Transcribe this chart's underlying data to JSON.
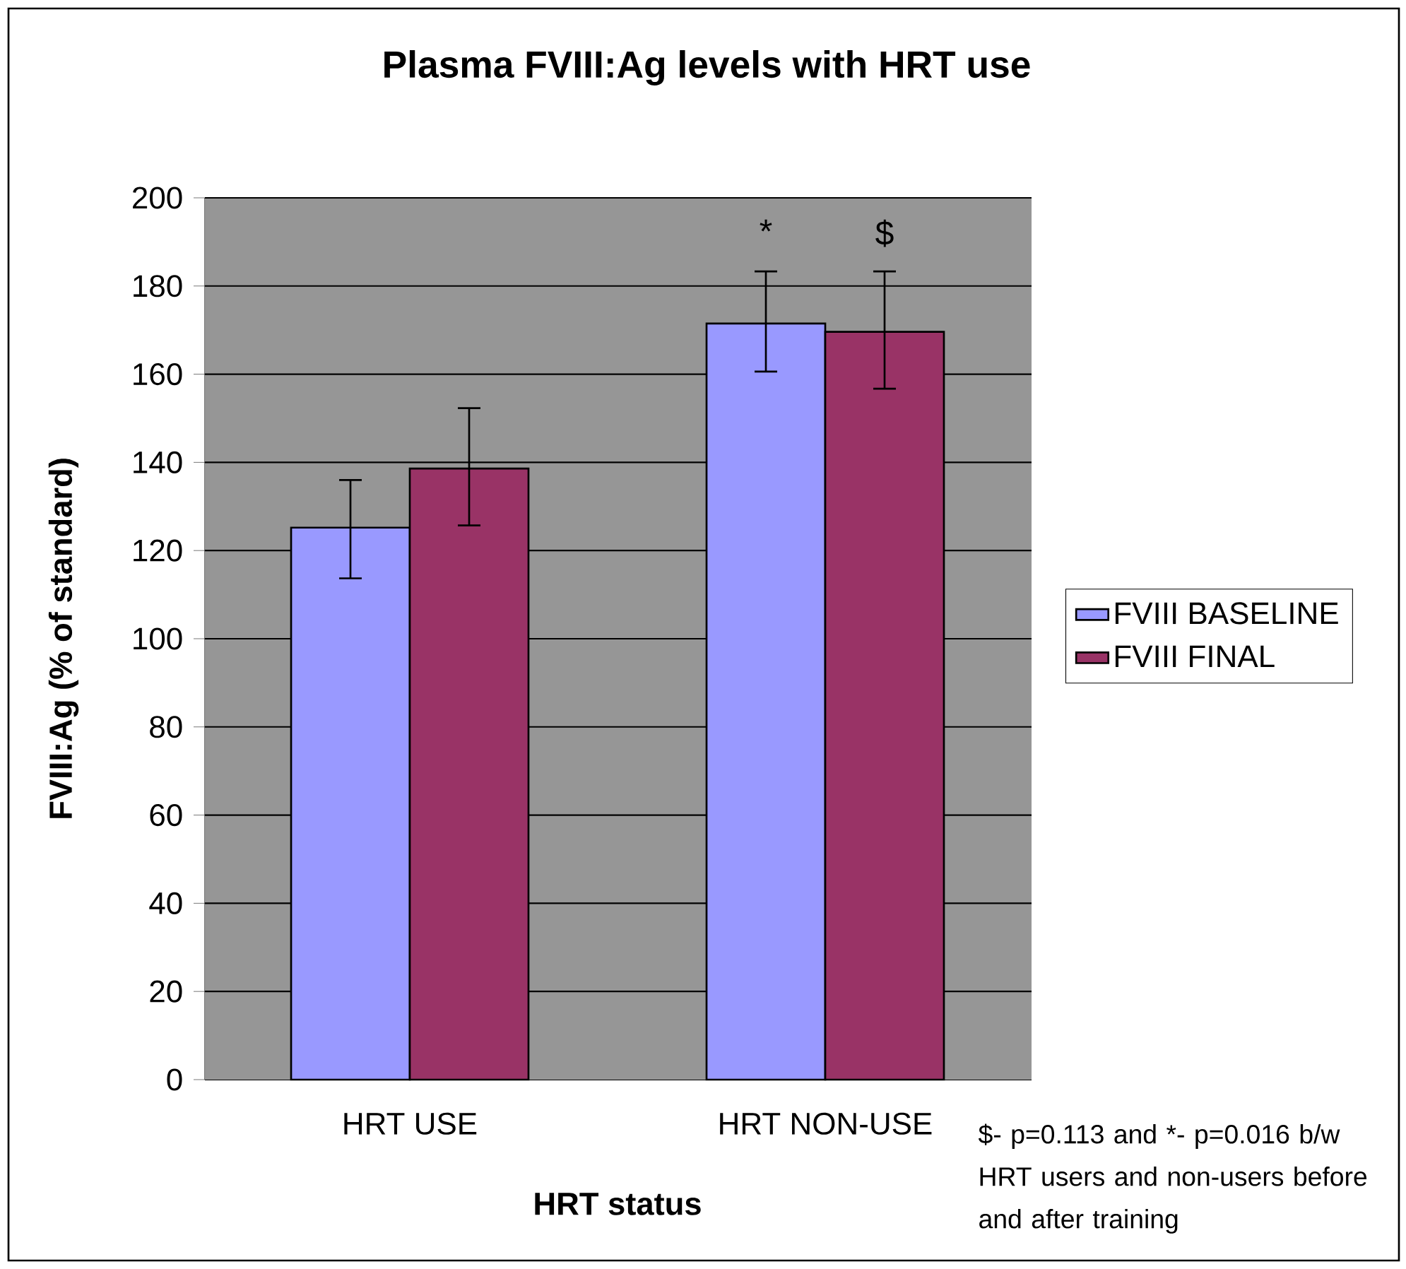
{
  "chart_data": {
    "type": "bar",
    "title": "Plasma FVIII:Ag levels with HRT use",
    "xlabel": "HRT status",
    "ylabel": "FVIII:Ag (% of standard)",
    "categories": [
      "HRT USE",
      "HRT NON-USE"
    ],
    "series": [
      {
        "name": "FVIII BASELINE",
        "color": "#9999ff",
        "values": [
          125.2,
          171.5
        ],
        "errors": [
          [
            113.7,
            136.0
          ],
          [
            160.6,
            183.3
          ]
        ]
      },
      {
        "name": "FVIII FINAL",
        "color": "#993366",
        "values": [
          138.6,
          169.6
        ],
        "errors": [
          [
            125.7,
            152.3
          ],
          [
            156.7,
            183.3
          ]
        ]
      }
    ],
    "ylim": [
      0,
      200
    ],
    "yticks": [
      0,
      20,
      40,
      60,
      80,
      100,
      120,
      140,
      160,
      180,
      200
    ],
    "grid": "y",
    "legend": "right",
    "annotations": [
      "*",
      "$",
      "$- p=0.113 and *- p=0.016 b/w HRT users and non-users before and after training"
    ]
  }
}
